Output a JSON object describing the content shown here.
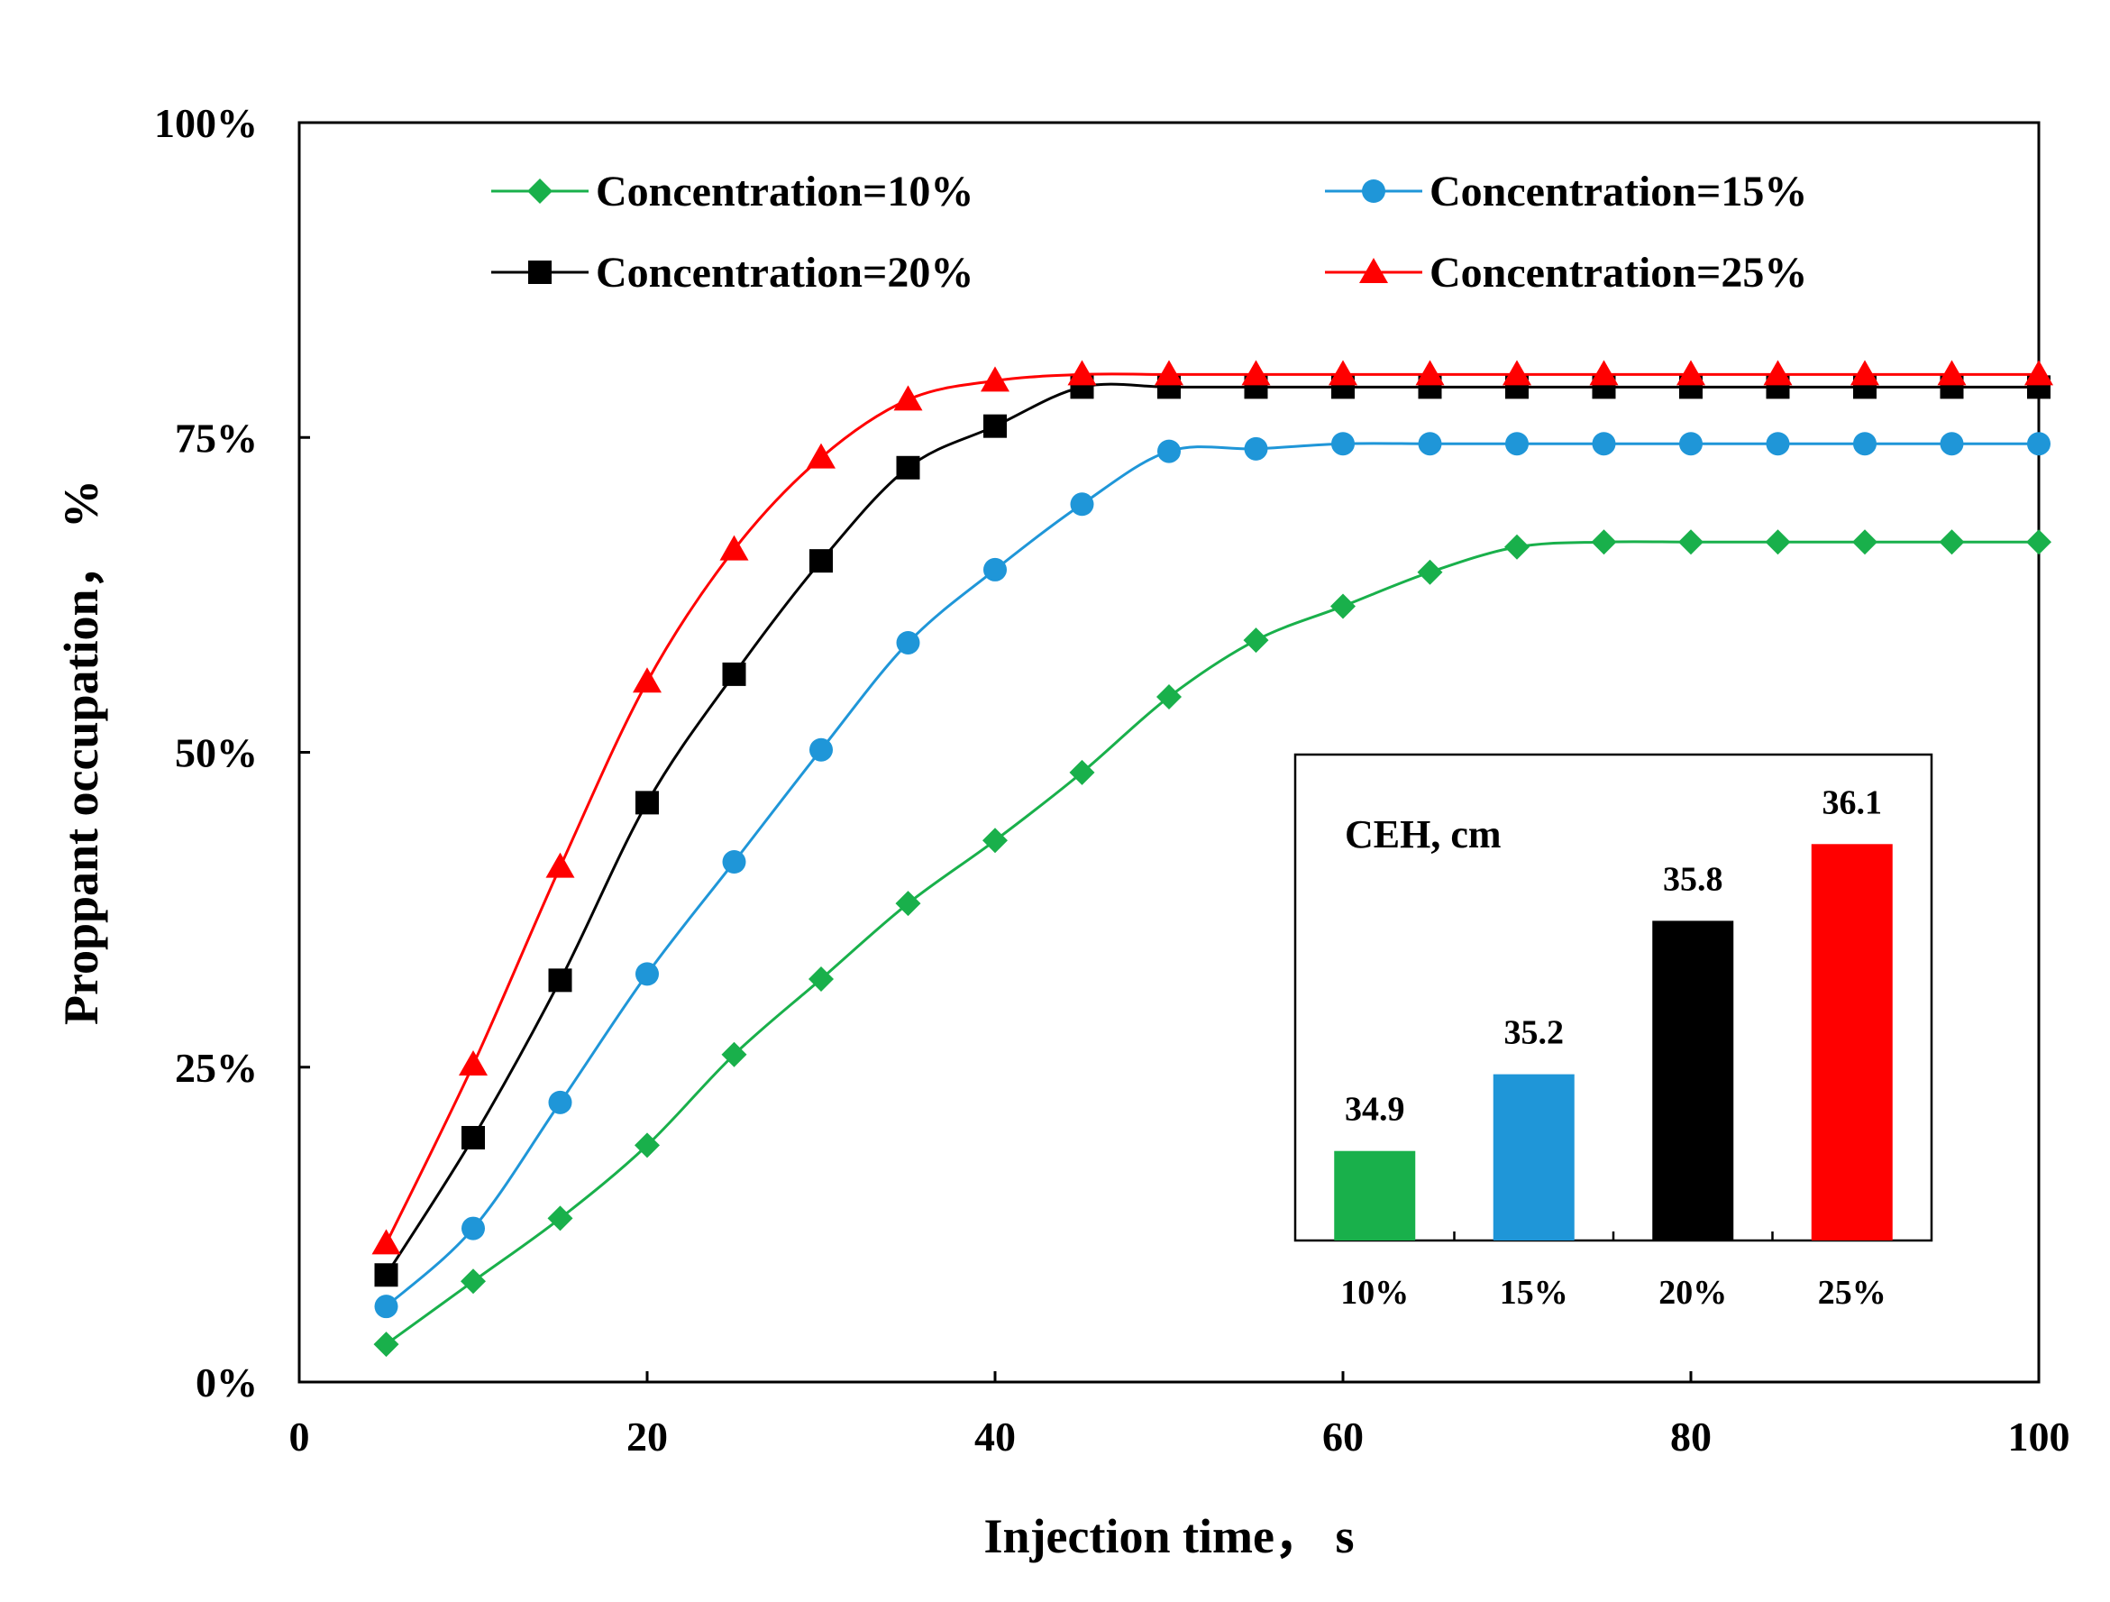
{
  "chart_data": [
    {
      "type": "line",
      "title": "",
      "xlabel": "Injection time，  s",
      "ylabel": "Proppant occupation，  %",
      "xlim": [
        0,
        100
      ],
      "ylim": [
        0,
        100
      ],
      "xticks": [
        "0",
        "20",
        "40",
        "60",
        "80",
        "100"
      ],
      "yticks": [
        "0%",
        "25%",
        "50%",
        "75%",
        "100%"
      ],
      "legend_position": "top",
      "x": [
        5,
        10,
        15,
        20,
        25,
        30,
        35,
        40,
        45,
        50,
        55,
        60,
        65,
        70,
        75,
        80,
        85,
        90,
        95,
        100
      ],
      "series": [
        {
          "name": "Concentration=10%",
          "color": "#19b04b",
          "marker": "diamond",
          "values": [
            3,
            8,
            13,
            18.8,
            26,
            32,
            38,
            43,
            48.4,
            54.4,
            58.9,
            61.6,
            64.3,
            66.3,
            66.7,
            66.7,
            66.7,
            66.7,
            66.7,
            66.7
          ]
        },
        {
          "name": "Concentration=15%",
          "color": "#1f96d8",
          "marker": "circle",
          "values": [
            6,
            12.2,
            22.2,
            32.4,
            41.3,
            50.2,
            58.7,
            64.5,
            69.7,
            73.9,
            74.1,
            74.5,
            74.5,
            74.5,
            74.5,
            74.5,
            74.5,
            74.5,
            74.5,
            74.5
          ]
        },
        {
          "name": "Concentration=20%",
          "color": "#000000",
          "marker": "square",
          "values": [
            8.5,
            19.4,
            31.9,
            46,
            56.2,
            65.2,
            72.6,
            75.9,
            79,
            79,
            79,
            79,
            79,
            79,
            79,
            79,
            79,
            79,
            79,
            79
          ]
        },
        {
          "name": "Concentration=25%",
          "color": "#ff0000",
          "marker": "triangle",
          "values": [
            11,
            25.2,
            40.9,
            55.6,
            66.1,
            73.4,
            78,
            79.5,
            80,
            80,
            80,
            80,
            80,
            80,
            80,
            80,
            80,
            80,
            80,
            80
          ]
        }
      ]
    },
    {
      "type": "bar",
      "title": "CEH, cm",
      "categories": [
        "10%",
        "15%",
        "20%",
        "25%"
      ],
      "values": [
        34.9,
        35.2,
        35.8,
        36.1
      ],
      "value_labels": [
        "34.9",
        "35.2",
        "35.8",
        "36.1"
      ],
      "colors": [
        "#19b04b",
        "#1f96d8",
        "#000000",
        "#ff0000"
      ],
      "ylim": [
        34.55,
        36.45
      ]
    }
  ]
}
